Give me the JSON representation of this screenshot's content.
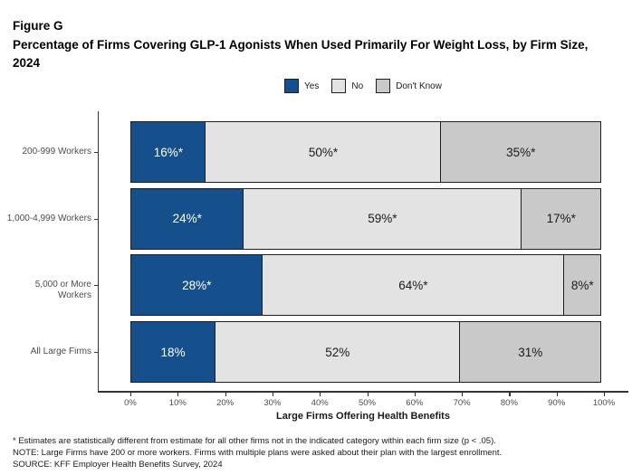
{
  "header": {
    "figure_label": "Figure G",
    "title": "Percentage of Firms Covering GLP-1 Agonists When Used Primarily For Weight Loss, by Firm Size, 2024"
  },
  "colors": {
    "yes_blue": "#15508C",
    "no_light_gray": "#E3E3E3",
    "dont_know_gray": "#C9C9C9",
    "segment_border": "#1F1F1F",
    "axis": "#333333",
    "tick_text": "#4D4D4D",
    "label_on_blue": "#FFFFFF",
    "label_on_gray": "#1A1A1A"
  },
  "legend": {
    "items": [
      {
        "label": "Yes",
        "color": "#15508C"
      },
      {
        "label": "No",
        "color": "#E3E3E3"
      },
      {
        "label": "Don't Know",
        "color": "#C9C9C9"
      }
    ]
  },
  "chart_data": {
    "type": "bar",
    "orientation": "horizontal",
    "stacked": true,
    "categories": [
      "200-999 Workers",
      "1,000-4,999 Workers",
      "5,000 or More Workers",
      "All Large Firms"
    ],
    "series": [
      {
        "name": "Yes",
        "color": "#15508C",
        "text_color": "#FFFFFF",
        "values": [
          16,
          24,
          28,
          18
        ],
        "labels": [
          "16%*",
          "24%*",
          "28%*",
          "18%"
        ]
      },
      {
        "name": "No",
        "color": "#E3E3E3",
        "text_color": "#1A1A1A",
        "values": [
          50,
          59,
          64,
          52
        ],
        "labels": [
          "50%*",
          "59%*",
          "64%*",
          "52%"
        ]
      },
      {
        "name": "Don't Know",
        "color": "#C9C9C9",
        "text_color": "#1A1A1A",
        "values": [
          35,
          17,
          8,
          31
        ],
        "labels": [
          "35%*",
          "17%*",
          "8%*",
          "31%"
        ]
      }
    ],
    "xlabel": "Large Firms Offering Health Benefits",
    "xlim": [
      0,
      100
    ],
    "x_ticks": [
      "0%",
      "10%",
      "20%",
      "30%",
      "40%",
      "50%",
      "60%",
      "70%",
      "80%",
      "90%",
      "100%"
    ],
    "grid": false,
    "legend_position": "top-center"
  },
  "footnotes": [
    "* Estimates are statistically different from estimate for all other firms not in the indicated category within each firm size (p < .05).",
    "NOTE: Large Firms have 200 or more workers.  Firms with multiple plans were asked about their plan with the largest enrollment.",
    "SOURCE: KFF Employer Health Benefits Survey, 2024"
  ]
}
